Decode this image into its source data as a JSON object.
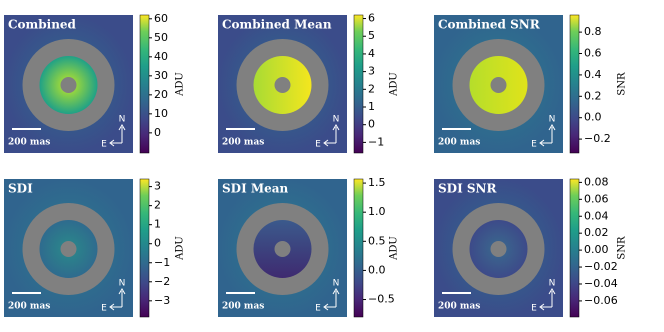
{
  "chart_data": [
    {
      "type": "heatmap",
      "title": "Combined",
      "colorbar_label": "ADU",
      "scale_bar_label": "200 mas",
      "north_label": "N",
      "east_label": "E",
      "clim": [
        -10.6,
        62
      ],
      "cticks": [
        0,
        10,
        20,
        30,
        40,
        50,
        60
      ]
    },
    {
      "type": "heatmap",
      "title": "Combined Mean",
      "colorbar_label": "ADU",
      "scale_bar_label": "200 mas",
      "north_label": "N",
      "east_label": "E",
      "clim": [
        -1.6,
        6.2
      ],
      "cticks": [
        {
          "value": -1,
          "label": "−1"
        },
        0,
        1,
        2,
        3,
        4,
        5,
        6
      ]
    },
    {
      "type": "heatmap",
      "title": "Combined SNR",
      "colorbar_label": "SNR",
      "scale_bar_label": "200 mas",
      "north_label": "N",
      "east_label": "E",
      "clim": [
        -0.33,
        0.96
      ],
      "cticks": [
        {
          "value": -0.2,
          "label": "−0.2"
        },
        {
          "value": 0,
          "label": "0.0"
        },
        0.2,
        0.4,
        0.6,
        0.8
      ]
    },
    {
      "type": "heatmap",
      "title": "SDI",
      "colorbar_label": "ADU",
      "scale_bar_label": "200 mas",
      "north_label": "N",
      "east_label": "E",
      "clim": [
        -3.85,
        3.4
      ],
      "cticks": [
        {
          "value": -3,
          "label": "−3"
        },
        {
          "value": -2,
          "label": "−2"
        },
        {
          "value": -1,
          "label": "−1"
        },
        0,
        1,
        2,
        3
      ]
    },
    {
      "type": "heatmap",
      "title": "SDI Mean",
      "colorbar_label": "ADU",
      "scale_bar_label": "200 mas",
      "north_label": "N",
      "east_label": "E",
      "clim": [
        -0.8,
        1.57
      ],
      "cticks": [
        {
          "value": -0.5,
          "label": "−0.5"
        },
        {
          "value": 0,
          "label": "0.0"
        },
        0.5,
        {
          "value": 1,
          "label": "1.0"
        },
        1.5
      ]
    },
    {
      "type": "heatmap",
      "title": "SDI SNR",
      "colorbar_label": "SNR",
      "scale_bar_label": "200 mas",
      "north_label": "N",
      "east_label": "E",
      "clim": [
        -0.079,
        0.084
      ],
      "cticks": [
        {
          "value": -0.06,
          "label": "−0.06"
        },
        {
          "value": -0.04,
          "label": "−0.04"
        },
        {
          "value": -0.02,
          "label": "−0.02"
        },
        {
          "value": 0,
          "label": "0.00"
        },
        0.02,
        0.04,
        0.06,
        0.08
      ]
    }
  ]
}
